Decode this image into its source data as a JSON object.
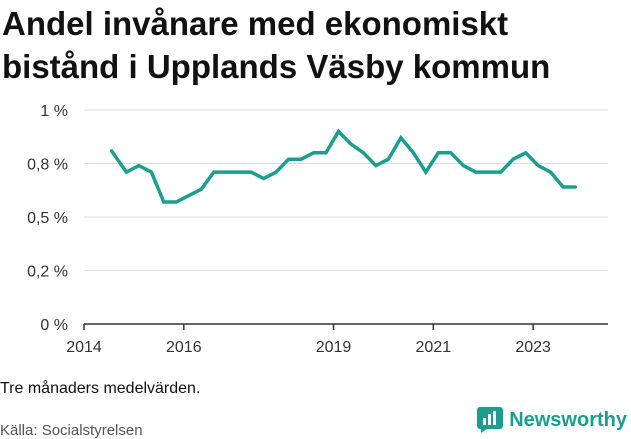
{
  "title": "Andel invånare med ekonomiskt bistånd i Upplands Väsby kommun",
  "note": "Tre månaders medelvärden.",
  "source": "Källa: Socialstyrelsen",
  "brand": {
    "name": "Newsworthy",
    "icon": "bar-chart-logo-icon",
    "color": "#1a9e8f"
  },
  "chart_data": {
    "type": "line",
    "title": "Andel invånare med ekonomiskt bistånd i Upplands Väsby kommun",
    "xlabel": "",
    "ylabel": "",
    "ylim": [
      0,
      1.0
    ],
    "y_ticks": [
      {
        "value": 0,
        "label": "0 %"
      },
      {
        "value": 0.25,
        "label": "0,2 %"
      },
      {
        "value": 0.5,
        "label": "0,5 %"
      },
      {
        "value": 0.75,
        "label": "0,8 %"
      },
      {
        "value": 1.0,
        "label": "1 %"
      }
    ],
    "x_range": [
      2014.0,
      2024.5
    ],
    "x_ticks": [
      {
        "value": 2014,
        "label": "2014"
      },
      {
        "value": 2016,
        "label": "2016"
      },
      {
        "value": 2019,
        "label": "2019"
      },
      {
        "value": 2021,
        "label": "2021"
      },
      {
        "value": 2023,
        "label": "2023"
      }
    ],
    "grid": true,
    "color": "#1a9e8f",
    "series": [
      {
        "x": [
          2014.55,
          2014.85,
          2015.1,
          2015.35,
          2015.6,
          2015.85,
          2016.1,
          2016.35,
          2016.6,
          2016.85,
          2017.1,
          2017.35,
          2017.6,
          2017.85,
          2018.1,
          2018.35,
          2018.6,
          2018.85,
          2019.1,
          2019.35,
          2019.6,
          2019.85,
          2020.1,
          2020.35,
          2020.6,
          2020.85,
          2021.1,
          2021.35,
          2021.6,
          2021.85,
          2022.1,
          2022.35,
          2022.6,
          2022.85,
          2023.1,
          2023.35,
          2023.6,
          2023.85
        ],
        "values": [
          0.81,
          0.71,
          0.74,
          0.71,
          0.57,
          0.57,
          0.6,
          0.63,
          0.71,
          0.71,
          0.71,
          0.71,
          0.68,
          0.71,
          0.77,
          0.77,
          0.8,
          0.8,
          0.9,
          0.84,
          0.8,
          0.74,
          0.77,
          0.87,
          0.8,
          0.71,
          0.8,
          0.8,
          0.74,
          0.71,
          0.71,
          0.71,
          0.77,
          0.8,
          0.74,
          0.71,
          0.64,
          0.64
        ]
      }
    ]
  }
}
